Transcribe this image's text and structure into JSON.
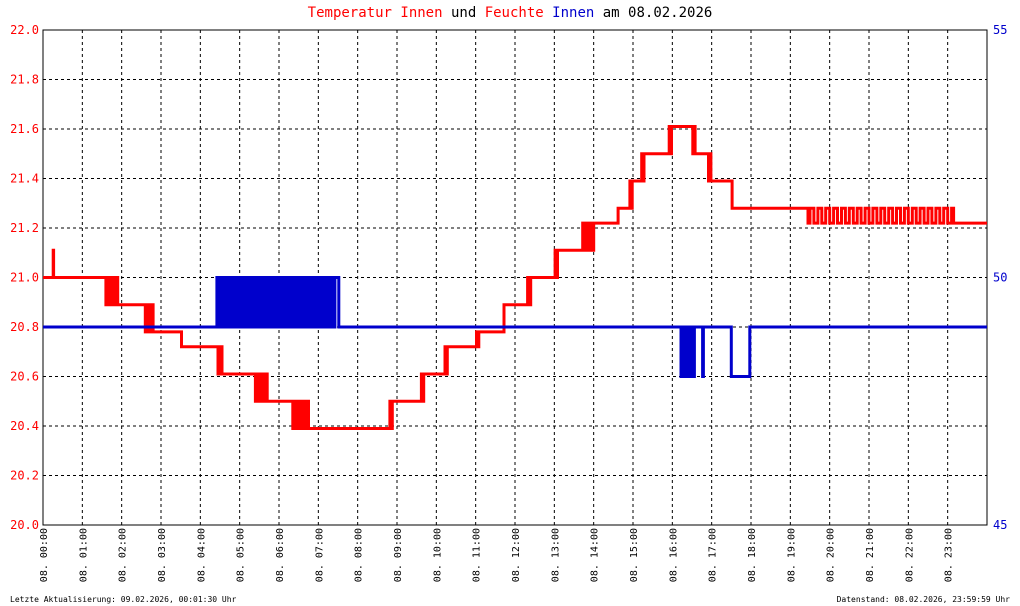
{
  "title": {
    "parts": [
      {
        "text": "Temperatur",
        "color": "#ff0000"
      },
      {
        "text": " ",
        "color": "#000000"
      },
      {
        "text": "Innen",
        "color": "#ff0000"
      },
      {
        "text": " und ",
        "color": "#000000"
      },
      {
        "text": "Feuchte",
        "color": "#ff0000"
      },
      {
        "text": " ",
        "color": "#000000"
      },
      {
        "text": "Innen",
        "color": "#0000cc"
      },
      {
        "text": " am 08.02.2026",
        "color": "#000000"
      }
    ]
  },
  "footer": {
    "left": "Letzte Aktualisierung: 09.02.2026, 00:01:30 Uhr",
    "right": "Datenstand: 08.02.2026, 23:59:59 Uhr"
  },
  "colors": {
    "temperature": "#ff0000",
    "humidity": "#0000cc",
    "grid": "#000000"
  },
  "chart_data": {
    "type": "line",
    "grid": true,
    "x_domain_hours": [
      0,
      24
    ],
    "x_tick_labels": [
      "08. 00:00",
      "08. 01:00",
      "08. 02:00",
      "08. 03:00",
      "08. 04:00",
      "08. 05:00",
      "08. 06:00",
      "08. 07:00",
      "08. 08:00",
      "08. 09:00",
      "08. 10:00",
      "08. 11:00",
      "08. 12:00",
      "08. 13:00",
      "08. 14:00",
      "08. 15:00",
      "08. 16:00",
      "08. 17:00",
      "08. 18:00",
      "08. 19:00",
      "08. 20:00",
      "08. 21:00",
      "08. 22:00",
      "08. 23:00"
    ],
    "y_left": {
      "lim": [
        20.0,
        22.0
      ],
      "ticks": [
        "20.0",
        "20.2",
        "20.4",
        "20.6",
        "20.8",
        "21.0",
        "21.2",
        "21.4",
        "21.6",
        "21.8",
        "22.0"
      ],
      "color": "#ff0000"
    },
    "y_right": {
      "lim": [
        45,
        55
      ],
      "ticks": [
        "45",
        "50",
        "55"
      ],
      "color": "#0000cc"
    },
    "series": [
      {
        "name": "Temperatur Innen",
        "axis": "left",
        "color": "#ff0000",
        "points": [
          [
            0.0,
            21.0
          ],
          [
            0.25,
            21.0
          ],
          [
            0.26,
            21.11
          ],
          [
            0.27,
            21.0
          ],
          [
            1.55,
            21.0
          ],
          [
            1.6,
            20.89
          ],
          [
            1.65,
            21.0
          ],
          [
            1.7,
            20.89
          ],
          [
            1.75,
            21.0
          ],
          [
            1.8,
            20.89
          ],
          [
            1.85,
            21.0
          ],
          [
            1.9,
            20.89
          ],
          [
            2.55,
            20.89
          ],
          [
            2.6,
            20.78
          ],
          [
            2.65,
            20.89
          ],
          [
            2.7,
            20.78
          ],
          [
            2.75,
            20.89
          ],
          [
            2.8,
            20.78
          ],
          [
            3.5,
            20.78
          ],
          [
            3.52,
            20.72
          ],
          [
            4.4,
            20.72
          ],
          [
            4.45,
            20.61
          ],
          [
            4.5,
            20.72
          ],
          [
            4.55,
            20.61
          ],
          [
            5.35,
            20.61
          ],
          [
            5.4,
            20.5
          ],
          [
            5.45,
            20.61
          ],
          [
            5.5,
            20.5
          ],
          [
            5.55,
            20.61
          ],
          [
            5.6,
            20.5
          ],
          [
            5.65,
            20.61
          ],
          [
            5.7,
            20.5
          ],
          [
            6.3,
            20.5
          ],
          [
            6.35,
            20.39
          ],
          [
            6.4,
            20.5
          ],
          [
            6.45,
            20.39
          ],
          [
            6.5,
            20.5
          ],
          [
            6.55,
            20.39
          ],
          [
            6.6,
            20.5
          ],
          [
            6.65,
            20.39
          ],
          [
            6.7,
            20.5
          ],
          [
            6.75,
            20.39
          ],
          [
            8.8,
            20.39
          ],
          [
            8.82,
            20.5
          ],
          [
            8.85,
            20.39
          ],
          [
            8.88,
            20.5
          ],
          [
            9.6,
            20.5
          ],
          [
            9.62,
            20.61
          ],
          [
            9.65,
            20.5
          ],
          [
            9.68,
            20.61
          ],
          [
            10.2,
            20.61
          ],
          [
            10.22,
            20.72
          ],
          [
            10.25,
            20.61
          ],
          [
            10.28,
            20.72
          ],
          [
            11.0,
            20.72
          ],
          [
            11.02,
            20.78
          ],
          [
            11.05,
            20.72
          ],
          [
            11.08,
            20.78
          ],
          [
            11.7,
            20.78
          ],
          [
            11.72,
            20.89
          ],
          [
            12.3,
            20.89
          ],
          [
            12.32,
            21.0
          ],
          [
            12.35,
            20.89
          ],
          [
            12.4,
            21.0
          ],
          [
            13.0,
            21.0
          ],
          [
            13.02,
            21.11
          ],
          [
            13.05,
            21.0
          ],
          [
            13.08,
            21.11
          ],
          [
            13.7,
            21.11
          ],
          [
            13.72,
            21.22
          ],
          [
            13.75,
            21.11
          ],
          [
            13.8,
            21.22
          ],
          [
            13.85,
            21.11
          ],
          [
            13.9,
            21.22
          ],
          [
            13.95,
            21.11
          ],
          [
            14.0,
            21.22
          ],
          [
            14.6,
            21.22
          ],
          [
            14.62,
            21.28
          ],
          [
            14.9,
            21.28
          ],
          [
            14.92,
            21.39
          ],
          [
            14.95,
            21.28
          ],
          [
            14.98,
            21.39
          ],
          [
            15.2,
            21.39
          ],
          [
            15.22,
            21.5
          ],
          [
            15.25,
            21.39
          ],
          [
            15.28,
            21.5
          ],
          [
            15.9,
            21.5
          ],
          [
            15.92,
            21.61
          ],
          [
            15.95,
            21.5
          ],
          [
            15.98,
            21.61
          ],
          [
            16.5,
            21.61
          ],
          [
            16.52,
            21.5
          ],
          [
            16.55,
            21.61
          ],
          [
            16.58,
            21.5
          ],
          [
            16.9,
            21.5
          ],
          [
            16.92,
            21.39
          ],
          [
            16.95,
            21.5
          ],
          [
            16.98,
            21.39
          ],
          [
            17.5,
            21.39
          ],
          [
            17.52,
            21.28
          ],
          [
            19.4,
            21.28
          ],
          [
            19.45,
            21.22
          ],
          [
            19.5,
            21.28
          ],
          [
            19.6,
            21.22
          ],
          [
            19.7,
            21.28
          ],
          [
            19.8,
            21.22
          ],
          [
            19.9,
            21.28
          ],
          [
            20.0,
            21.22
          ],
          [
            20.1,
            21.28
          ],
          [
            20.2,
            21.22
          ],
          [
            20.3,
            21.28
          ],
          [
            20.4,
            21.22
          ],
          [
            20.5,
            21.28
          ],
          [
            20.6,
            21.22
          ],
          [
            20.7,
            21.28
          ],
          [
            20.8,
            21.22
          ],
          [
            20.9,
            21.28
          ],
          [
            21.0,
            21.22
          ],
          [
            21.1,
            21.28
          ],
          [
            21.2,
            21.22
          ],
          [
            21.3,
            21.28
          ],
          [
            21.4,
            21.22
          ],
          [
            21.5,
            21.28
          ],
          [
            21.6,
            21.22
          ],
          [
            21.7,
            21.28
          ],
          [
            21.8,
            21.22
          ],
          [
            21.9,
            21.28
          ],
          [
            22.0,
            21.22
          ],
          [
            22.1,
            21.28
          ],
          [
            22.2,
            21.22
          ],
          [
            22.3,
            21.28
          ],
          [
            22.4,
            21.22
          ],
          [
            22.5,
            21.28
          ],
          [
            22.6,
            21.22
          ],
          [
            22.7,
            21.28
          ],
          [
            22.8,
            21.22
          ],
          [
            22.9,
            21.28
          ],
          [
            23.0,
            21.22
          ],
          [
            23.1,
            21.28
          ],
          [
            23.15,
            21.22
          ],
          [
            24.0,
            21.22
          ]
        ]
      },
      {
        "name": "Feuchte Innen",
        "axis": "right",
        "color": "#0000cc",
        "points": [
          [
            0.0,
            49
          ],
          [
            4.4,
            49
          ],
          [
            4.42,
            50
          ],
          [
            4.48,
            49
          ],
          [
            4.54,
            50
          ],
          [
            4.6,
            49
          ],
          [
            4.66,
            50
          ],
          [
            4.72,
            49
          ],
          [
            4.78,
            50
          ],
          [
            4.84,
            49
          ],
          [
            4.9,
            50
          ],
          [
            4.96,
            49
          ],
          [
            5.02,
            50
          ],
          [
            5.08,
            49
          ],
          [
            5.14,
            50
          ],
          [
            5.2,
            49
          ],
          [
            5.26,
            50
          ],
          [
            5.32,
            49
          ],
          [
            5.38,
            50
          ],
          [
            5.44,
            49
          ],
          [
            5.5,
            50
          ],
          [
            5.56,
            49
          ],
          [
            5.62,
            50
          ],
          [
            5.68,
            49
          ],
          [
            5.74,
            50
          ],
          [
            5.8,
            49
          ],
          [
            5.86,
            50
          ],
          [
            5.92,
            49
          ],
          [
            5.98,
            50
          ],
          [
            6.04,
            49
          ],
          [
            6.1,
            50
          ],
          [
            6.16,
            49
          ],
          [
            6.22,
            50
          ],
          [
            6.28,
            49
          ],
          [
            6.34,
            50
          ],
          [
            6.4,
            49
          ],
          [
            6.46,
            50
          ],
          [
            6.52,
            49
          ],
          [
            6.58,
            50
          ],
          [
            6.64,
            49
          ],
          [
            6.7,
            50
          ],
          [
            6.76,
            49
          ],
          [
            6.82,
            50
          ],
          [
            6.88,
            49
          ],
          [
            6.94,
            50
          ],
          [
            7.0,
            49
          ],
          [
            7.06,
            50
          ],
          [
            7.12,
            49
          ],
          [
            7.18,
            50
          ],
          [
            7.24,
            49
          ],
          [
            7.3,
            50
          ],
          [
            7.36,
            49
          ],
          [
            7.42,
            50
          ],
          [
            7.5,
            50
          ],
          [
            7.52,
            49
          ],
          [
            16.2,
            49
          ],
          [
            16.22,
            48
          ],
          [
            16.28,
            49
          ],
          [
            16.34,
            48
          ],
          [
            16.4,
            49
          ],
          [
            16.46,
            48
          ],
          [
            16.5,
            49
          ],
          [
            16.52,
            48
          ],
          [
            16.56,
            49
          ],
          [
            16.75,
            49
          ],
          [
            16.77,
            48
          ],
          [
            16.79,
            49
          ],
          [
            17.45,
            49
          ],
          [
            17.5,
            48
          ],
          [
            17.95,
            48
          ],
          [
            17.97,
            49
          ],
          [
            24.0,
            49
          ]
        ]
      }
    ]
  }
}
